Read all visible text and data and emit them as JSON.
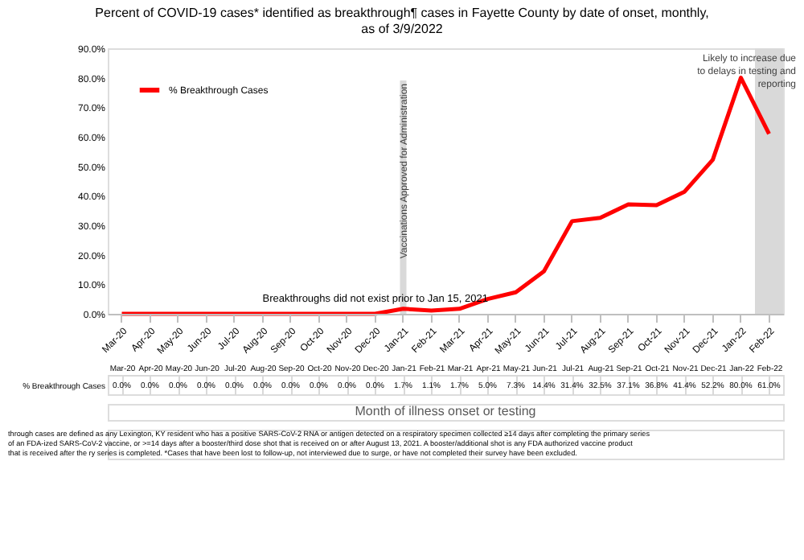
{
  "chart_data": {
    "type": "line",
    "title": "Percent of COVID-19 cases* identified as breakthrough¶ cases in Fayette County by date of onset, monthly, as of 3/9/2022",
    "xlabel": "Month of illness onset or testing",
    "categories": [
      "Mar-20",
      "Apr-20",
      "May-20",
      "Jun-20",
      "Jul-20",
      "Aug-20",
      "Sep-20",
      "Oct-20",
      "Nov-20",
      "Dec-20",
      "Jan-21",
      "Feb-21",
      "Mar-21",
      "Apr-21",
      "May-21",
      "Jun-21",
      "Jul-21",
      "Aug-21",
      "Sep-21",
      "Oct-21",
      "Nov-21",
      "Dec-21",
      "Jan-22",
      "Feb-22"
    ],
    "series": [
      {
        "name": "% Breakthrough Cases",
        "color": "#ff0000",
        "values": [
          0,
          0,
          0,
          0,
          0,
          0,
          0,
          0,
          0,
          0,
          1.7,
          1.1,
          1.7,
          5.0,
          7.3,
          14.4,
          31.4,
          32.5,
          37.1,
          36.8,
          41.4,
          52.2,
          80.0,
          61.0
        ],
        "value_labels": [
          "0.0%",
          "0.0%",
          "0.0%",
          "0.0%",
          "0.0%",
          "0.0%",
          "0.0%",
          "0.0%",
          "0.0%",
          "0.0%",
          "1.7%",
          "1.1%",
          "1.7%",
          "5.0%",
          "7.3%",
          "14.4%",
          "31.4%",
          "32.5%",
          "37.1%",
          "36.8%",
          "41.4%",
          "52.2%",
          "80.0%",
          "61.0%"
        ]
      }
    ],
    "ylim": [
      0,
      90
    ],
    "yticks": [
      {
        "value": 0,
        "label": "0.0%"
      },
      {
        "value": 10,
        "label": "10.0%"
      },
      {
        "value": 20,
        "label": "20.0%"
      },
      {
        "value": 30,
        "label": "30.0%"
      },
      {
        "value": 40,
        "label": "40.0%"
      },
      {
        "value": 50,
        "label": "50.0%"
      },
      {
        "value": 60,
        "label": "60.0%"
      },
      {
        "value": 70,
        "label": "70.0%"
      },
      {
        "value": 80,
        "label": "80.0%"
      },
      {
        "value": 90,
        "label": "90.0%"
      }
    ],
    "ref_lines": [
      {
        "axis": "x",
        "value": "Jan-21",
        "label": "Vaccinations Approved for Administration",
        "color": "#d9d9d9"
      }
    ],
    "bands": [
      {
        "axis": "x",
        "from": "Feb-22",
        "to": "Feb-22",
        "label": "Likely to increase due to delays in testing and reporting",
        "color": "#d9d9d9"
      }
    ],
    "annotations": [
      {
        "text": "Breakthroughs did not exist prior to Jan 15, 2021",
        "x": "Aug-20",
        "y": 2
      },
      "through cases are defined as any Lexington, KY resident who has a positive SARS-CoV-2 RNA or antigen detected on a respiratory specimen collected ≥14 days after completing the primary series of an FDA-ized SARS-CoV-2 vaccine, or >=14 days after a booster/third dose shot that is received on or after August 13, 2021.  A booster/additional shot is any FDA authorized vaccine product that is received after the ry series is completed. *Cases that have been lost to follow-up, not interviewed due to surge, or have not completed their survey have been excluded."
    ],
    "legend": "top left",
    "grid": false,
    "marker": "none",
    "line_style": "solid"
  }
}
